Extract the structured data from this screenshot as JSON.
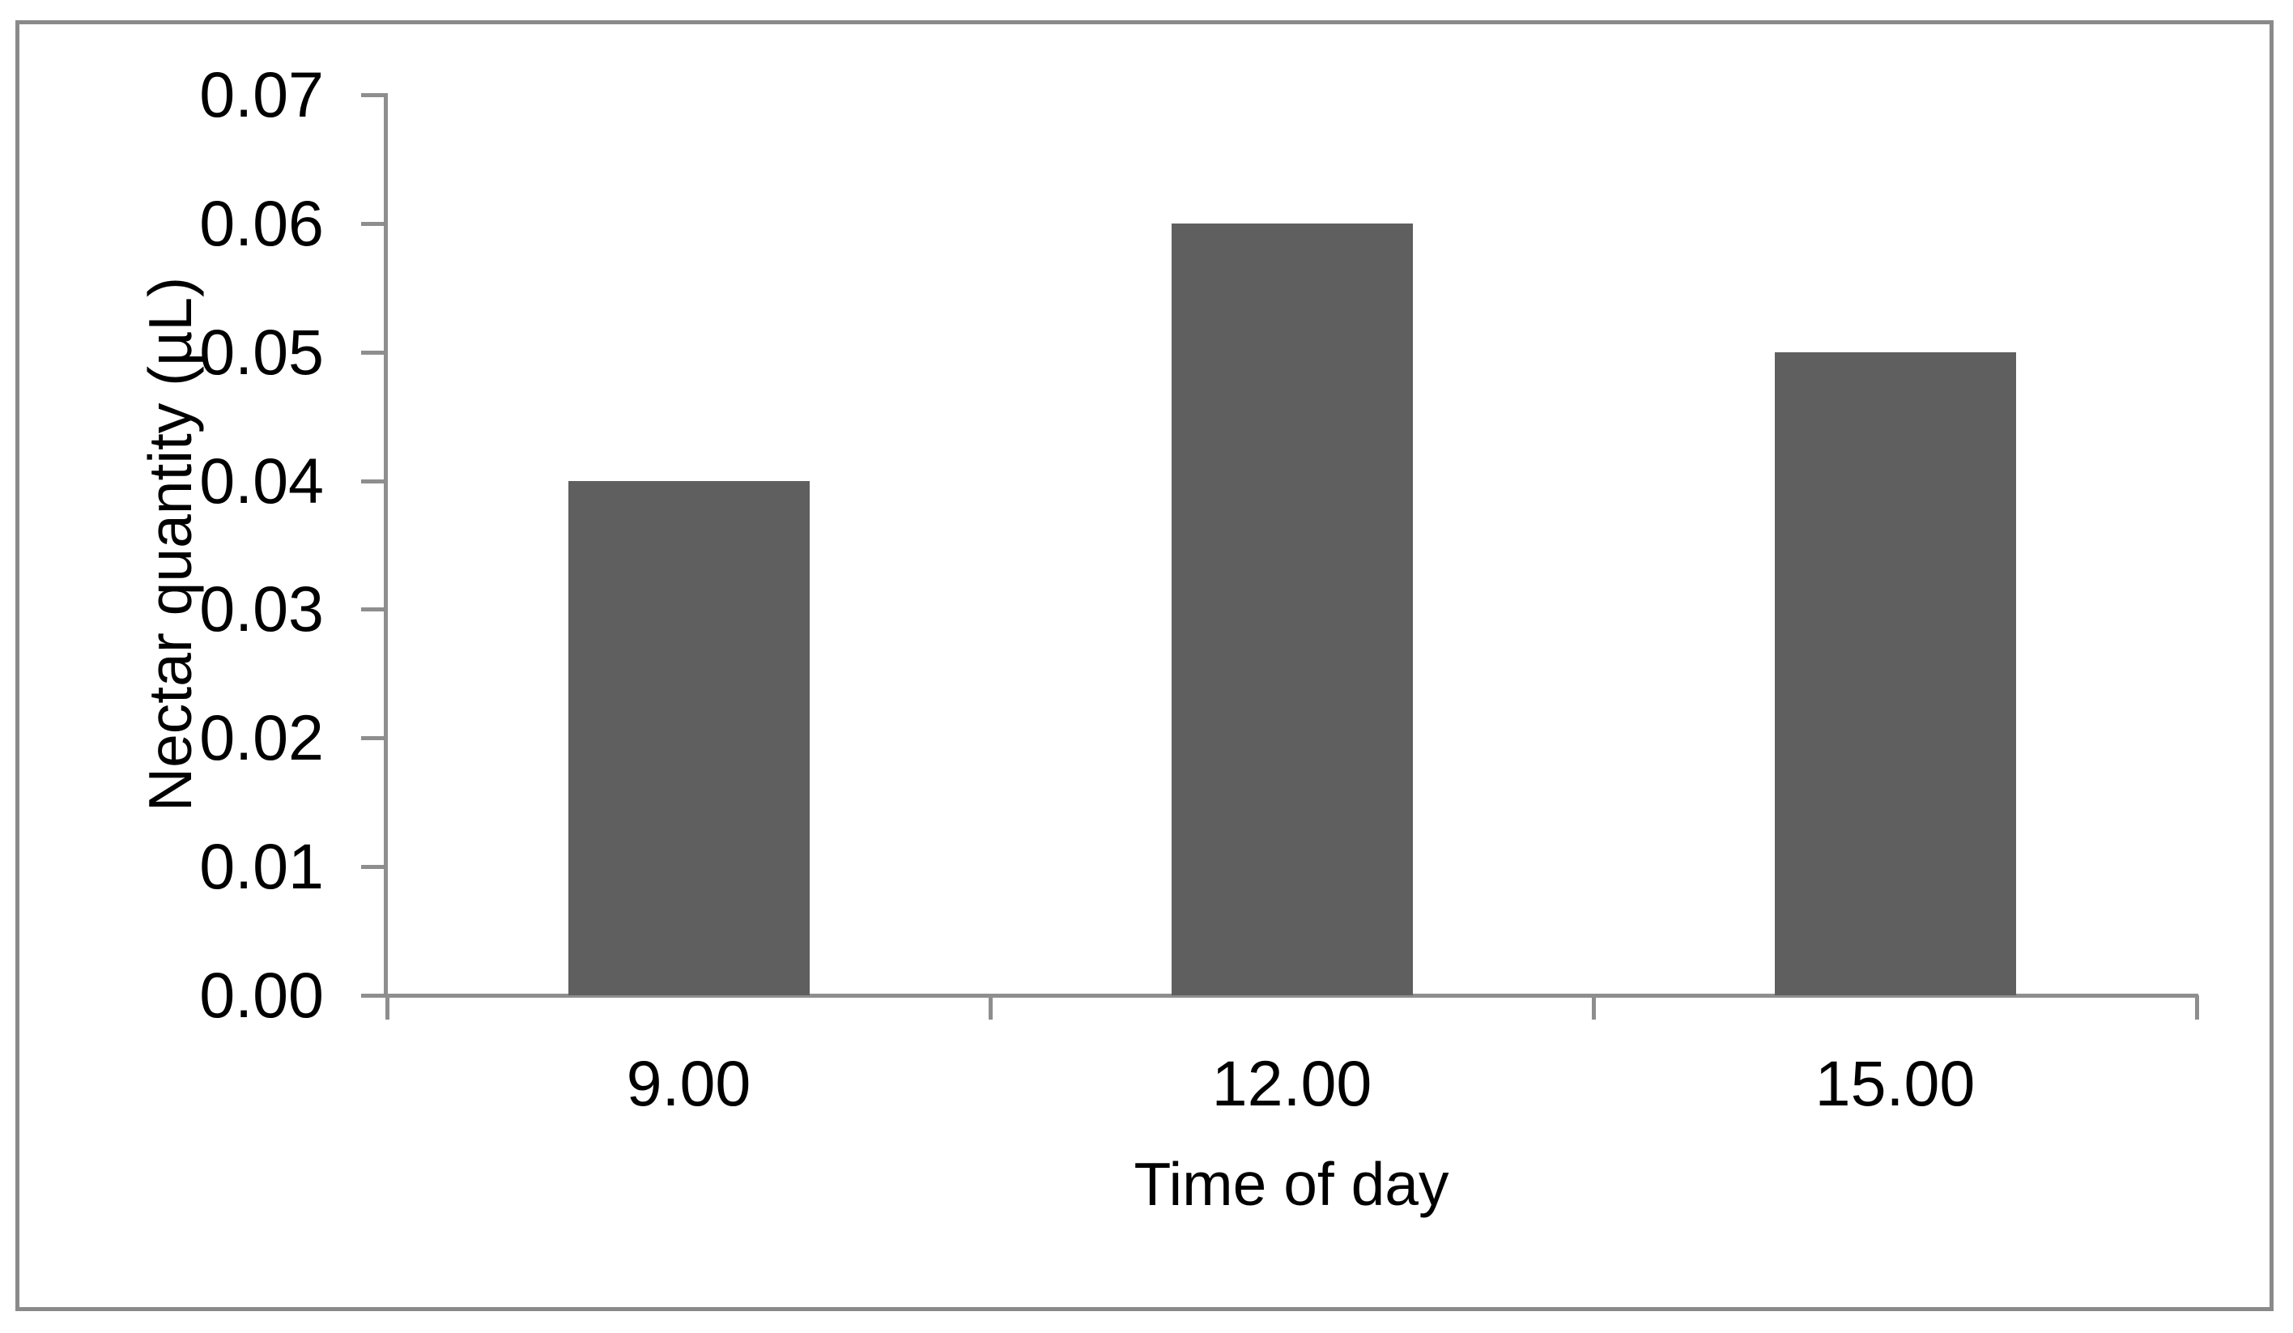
{
  "figure": {
    "background": "#FFFFFF",
    "border_color": "#8A8A8A"
  },
  "chart_data": {
    "type": "bar",
    "title": "",
    "categories": [
      "9.00",
      "12.00",
      "15.00"
    ],
    "values": [
      0.04,
      0.06,
      0.05
    ],
    "xlabel": "Time of day",
    "ylabel": "Nectar quantity (µL)",
    "ylim": [
      0.0,
      0.07
    ],
    "ytick_step": 0.01,
    "ytick_labels": [
      "0.00",
      "0.01",
      "0.02",
      "0.03",
      "0.04",
      "0.05",
      "0.06",
      "0.07"
    ],
    "grid": false,
    "legend": false,
    "bar_color": "#5F5F5F",
    "axis_color": "#8E8E8E",
    "text_color": "#000000"
  }
}
